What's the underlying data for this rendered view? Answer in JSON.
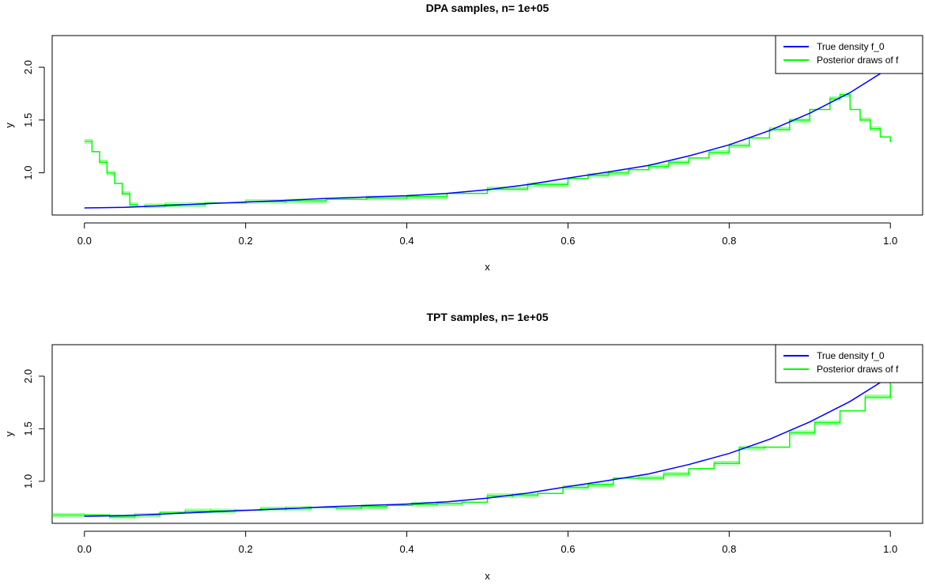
{
  "chart_data": [
    {
      "type": "line",
      "title": "DPA samples, n= 1e+05",
      "xlabel": "x",
      "ylabel": "y",
      "xlim": [
        -0.04,
        1.04
      ],
      "ylim": [
        0.6,
        2.3
      ],
      "x_ticks": [
        0.0,
        0.2,
        0.4,
        0.6,
        0.8,
        1.0
      ],
      "x_tick_labels": [
        "0.0",
        "0.2",
        "0.4",
        "0.6",
        "0.8",
        "1.0"
      ],
      "y_ticks": [
        1.0,
        1.5,
        2.0
      ],
      "y_tick_labels": [
        "1.0",
        "1.5",
        "2.0"
      ],
      "legend": {
        "position": "top-right",
        "entries": [
          {
            "label": "True density f_0",
            "color": "#0000ff"
          },
          {
            "label": "Posterior draws of f",
            "color": "#00ff00"
          }
        ]
      },
      "series": [
        {
          "name": "True density f_0",
          "color": "#0000ff",
          "x": [
            0.0,
            0.05,
            0.1,
            0.15,
            0.2,
            0.25,
            0.3,
            0.35,
            0.4,
            0.45,
            0.5,
            0.55,
            0.6,
            0.65,
            0.7,
            0.75,
            0.8,
            0.85,
            0.9,
            0.95,
            1.0
          ],
          "y": [
            0.667,
            0.673,
            0.689,
            0.707,
            0.723,
            0.739,
            0.757,
            0.77,
            0.783,
            0.805,
            0.84,
            0.888,
            0.95,
            1.008,
            1.07,
            1.16,
            1.265,
            1.4,
            1.565,
            1.76,
            2.0
          ]
        },
        {
          "name": "Posterior draws of f",
          "color": "#00ff00",
          "style": "step",
          "x": [
            0.0,
            0.0094,
            0.0188,
            0.0281,
            0.0375,
            0.0469,
            0.0563,
            0.0656,
            0.075,
            0.1,
            0.15,
            0.2,
            0.25,
            0.3,
            0.35,
            0.4,
            0.45,
            0.5,
            0.55,
            0.6,
            0.625,
            0.65,
            0.675,
            0.7,
            0.725,
            0.75,
            0.775,
            0.8,
            0.825,
            0.85,
            0.875,
            0.9,
            0.925,
            0.9375,
            0.95,
            0.9625,
            0.975,
            0.9875,
            1.0
          ],
          "y": [
            1.3,
            1.2,
            1.1,
            1.0,
            0.9,
            0.8,
            0.7,
            0.68,
            0.685,
            0.7,
            0.715,
            0.725,
            0.735,
            0.75,
            0.76,
            0.775,
            0.805,
            0.845,
            0.89,
            0.945,
            0.975,
            1.0,
            1.03,
            1.06,
            1.1,
            1.14,
            1.19,
            1.26,
            1.33,
            1.41,
            1.5,
            1.6,
            1.7,
            1.74,
            1.6,
            1.5,
            1.42,
            1.34,
            1.3
          ]
        }
      ]
    },
    {
      "type": "line",
      "title": "TPT samples, n= 1e+05",
      "xlabel": "x",
      "ylabel": "y",
      "xlim": [
        -0.04,
        1.04
      ],
      "ylim": [
        0.6,
        2.3
      ],
      "x_ticks": [
        0.0,
        0.2,
        0.4,
        0.6,
        0.8,
        1.0
      ],
      "x_tick_labels": [
        "0.0",
        "0.2",
        "0.4",
        "0.6",
        "0.8",
        "1.0"
      ],
      "y_ticks": [
        1.0,
        1.5,
        2.0
      ],
      "y_tick_labels": [
        "1.0",
        "1.5",
        "2.0"
      ],
      "legend": {
        "position": "top-right",
        "entries": [
          {
            "label": "True density f_0",
            "color": "#0000ff"
          },
          {
            "label": "Posterior draws of f",
            "color": "#00ff00"
          }
        ]
      },
      "series": [
        {
          "name": "True density f_0",
          "color": "#0000ff",
          "x": [
            0.0,
            0.05,
            0.1,
            0.15,
            0.2,
            0.25,
            0.3,
            0.35,
            0.4,
            0.45,
            0.5,
            0.55,
            0.6,
            0.65,
            0.7,
            0.75,
            0.8,
            0.85,
            0.9,
            0.95,
            1.0
          ],
          "y": [
            0.667,
            0.673,
            0.689,
            0.707,
            0.723,
            0.739,
            0.757,
            0.77,
            0.783,
            0.805,
            0.84,
            0.888,
            0.95,
            1.008,
            1.07,
            1.16,
            1.265,
            1.4,
            1.565,
            1.76,
            2.0
          ]
        },
        {
          "name": "Posterior draws of f",
          "color": "#00ff00",
          "style": "step",
          "x": [
            -0.04,
            0.0,
            0.03125,
            0.0625,
            0.09375,
            0.125,
            0.15625,
            0.1875,
            0.21875,
            0.25,
            0.28125,
            0.3125,
            0.34375,
            0.375,
            0.40625,
            0.4375,
            0.46875,
            0.5,
            0.53125,
            0.5625,
            0.59375,
            0.625,
            0.65625,
            0.6875,
            0.71875,
            0.75,
            0.78125,
            0.8125,
            0.84375,
            0.875,
            0.90625,
            0.9375,
            0.96875,
            1.0,
            1.04
          ],
          "y": [
            0.68,
            0.68,
            0.66,
            0.68,
            0.705,
            0.715,
            0.72,
            0.725,
            0.735,
            0.745,
            0.75,
            0.745,
            0.76,
            0.77,
            0.78,
            0.79,
            0.8,
            0.86,
            0.87,
            0.885,
            0.94,
            0.97,
            1.03,
            1.03,
            1.07,
            1.12,
            1.17,
            1.32,
            1.325,
            1.46,
            1.56,
            1.67,
            1.8,
            1.96,
            1.96
          ]
        }
      ]
    }
  ]
}
